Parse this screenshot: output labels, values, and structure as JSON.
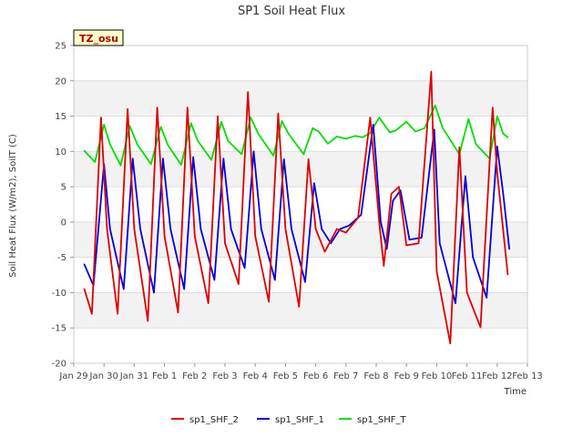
{
  "chart_data": {
    "type": "line",
    "title": "SP1 Soil Heat Flux",
    "xlabel": "Time",
    "ylabel": "Soil Heat Flux (W/m2), SoilT (C)",
    "ylim": [
      -20,
      25
    ],
    "yticks": [
      -20,
      -15,
      -10,
      -5,
      0,
      5,
      10,
      15,
      20,
      25
    ],
    "xlim": [
      "Jan 29",
      "Feb 13"
    ],
    "xticks": [
      "Jan 29",
      "Jan 30",
      "Jan 31",
      "Feb 1",
      "Feb 2",
      "Feb 3",
      "Feb 4",
      "Feb 5",
      "Feb 6",
      "Feb 7",
      "Feb 8",
      "Feb 9",
      "Feb 10",
      "Feb 11",
      "Feb 12",
      "Feb 13"
    ],
    "grid": true,
    "legend_position": "bottom",
    "annotation": "TZ_osu",
    "colors": {
      "sp1_SHF_2": "#dd0000",
      "sp1_SHF_1": "#0000dd",
      "sp1_SHF_T": "#00dd00"
    },
    "series": [
      {
        "name": "sp1_SHF_2",
        "points": [
          [
            0.35,
            -9.5
          ],
          [
            0.6,
            -13
          ],
          [
            0.9,
            14.8
          ],
          [
            1.1,
            -1
          ],
          [
            1.45,
            -13
          ],
          [
            1.78,
            16
          ],
          [
            2.0,
            -1
          ],
          [
            2.45,
            -14
          ],
          [
            2.76,
            16.2
          ],
          [
            3.0,
            -2
          ],
          [
            3.45,
            -12.8
          ],
          [
            3.76,
            16.2
          ],
          [
            4.0,
            -2
          ],
          [
            4.45,
            -11.5
          ],
          [
            4.76,
            15
          ],
          [
            5.0,
            -3
          ],
          [
            5.45,
            -8.8
          ],
          [
            5.76,
            18.4
          ],
          [
            6.0,
            -2
          ],
          [
            6.45,
            -11.3
          ],
          [
            6.76,
            15.4
          ],
          [
            7.0,
            -1
          ],
          [
            7.45,
            -12
          ],
          [
            7.76,
            8.9
          ],
          [
            8.0,
            -1
          ],
          [
            8.3,
            -4.2
          ],
          [
            8.7,
            -1
          ],
          [
            9.0,
            -1.5
          ],
          [
            9.4,
            0.6
          ],
          [
            9.8,
            14.8
          ],
          [
            10.1,
            0
          ],
          [
            10.25,
            -6.2
          ],
          [
            10.5,
            4
          ],
          [
            10.75,
            5
          ],
          [
            11.0,
            -3.3
          ],
          [
            11.4,
            -3
          ],
          [
            11.82,
            21.3
          ],
          [
            12.0,
            -7
          ],
          [
            12.45,
            -17.2
          ],
          [
            12.75,
            10.6
          ],
          [
            13.0,
            -10
          ],
          [
            13.45,
            -14.9
          ],
          [
            13.85,
            16.2
          ],
          [
            14.0,
            7
          ],
          [
            14.35,
            -7.4
          ]
        ]
      },
      {
        "name": "sp1_SHF_1",
        "points": [
          [
            0.35,
            -6
          ],
          [
            0.65,
            -9
          ],
          [
            1.0,
            8.2
          ],
          [
            1.2,
            -1
          ],
          [
            1.65,
            -9.5
          ],
          [
            1.95,
            9
          ],
          [
            2.2,
            -1
          ],
          [
            2.65,
            -10
          ],
          [
            2.95,
            9
          ],
          [
            3.2,
            -1
          ],
          [
            3.65,
            -9.5
          ],
          [
            3.95,
            9.2
          ],
          [
            4.2,
            -1
          ],
          [
            4.65,
            -8.2
          ],
          [
            4.95,
            9
          ],
          [
            5.2,
            -1
          ],
          [
            5.65,
            -6.5
          ],
          [
            5.95,
            10
          ],
          [
            6.2,
            -1
          ],
          [
            6.65,
            -8.2
          ],
          [
            6.95,
            8.9
          ],
          [
            7.2,
            -1
          ],
          [
            7.65,
            -8.5
          ],
          [
            7.95,
            5.5
          ],
          [
            8.2,
            -1
          ],
          [
            8.5,
            -3
          ],
          [
            8.8,
            -1
          ],
          [
            9.1,
            -0.5
          ],
          [
            9.5,
            1
          ],
          [
            9.9,
            13.8
          ],
          [
            10.15,
            0
          ],
          [
            10.35,
            -3.8
          ],
          [
            10.55,
            3
          ],
          [
            10.8,
            4.5
          ],
          [
            11.1,
            -2.5
          ],
          [
            11.5,
            -2.2
          ],
          [
            11.92,
            13.1
          ],
          [
            12.1,
            -3
          ],
          [
            12.62,
            -11.5
          ],
          [
            12.95,
            6.5
          ],
          [
            13.2,
            -5
          ],
          [
            13.65,
            -10.7
          ],
          [
            14.0,
            10.7
          ],
          [
            14.2,
            4
          ],
          [
            14.4,
            -3.8
          ]
        ]
      },
      {
        "name": "sp1_SHF_T",
        "points": [
          [
            0.35,
            10.1
          ],
          [
            0.7,
            8.5
          ],
          [
            1.0,
            13.8
          ],
          [
            1.2,
            11
          ],
          [
            1.55,
            8
          ],
          [
            1.85,
            13.6
          ],
          [
            2.1,
            11
          ],
          [
            2.55,
            8.2
          ],
          [
            2.88,
            13.5
          ],
          [
            3.1,
            11
          ],
          [
            3.55,
            8.1
          ],
          [
            3.88,
            14
          ],
          [
            4.1,
            11.5
          ],
          [
            4.55,
            8.8
          ],
          [
            4.88,
            14.2
          ],
          [
            5.1,
            11.5
          ],
          [
            5.55,
            9.6
          ],
          [
            5.85,
            14.8
          ],
          [
            6.1,
            12.5
          ],
          [
            6.6,
            9.4
          ],
          [
            6.88,
            14.3
          ],
          [
            7.1,
            12.5
          ],
          [
            7.6,
            9.6
          ],
          [
            7.9,
            13.3
          ],
          [
            8.1,
            12.8
          ],
          [
            8.4,
            11.1
          ],
          [
            8.7,
            12.1
          ],
          [
            9.0,
            11.8
          ],
          [
            9.3,
            12.2
          ],
          [
            9.55,
            12
          ],
          [
            9.8,
            12.6
          ],
          [
            10.1,
            14.8
          ],
          [
            10.45,
            12.7
          ],
          [
            10.65,
            13
          ],
          [
            11.0,
            14.2
          ],
          [
            11.3,
            12.8
          ],
          [
            11.6,
            13.3
          ],
          [
            11.95,
            16.5
          ],
          [
            12.2,
            13.3
          ],
          [
            12.75,
            9.6
          ],
          [
            13.05,
            14.6
          ],
          [
            13.3,
            11
          ],
          [
            13.75,
            9
          ],
          [
            14.0,
            15
          ],
          [
            14.2,
            12.5
          ],
          [
            14.35,
            12
          ]
        ]
      }
    ]
  }
}
